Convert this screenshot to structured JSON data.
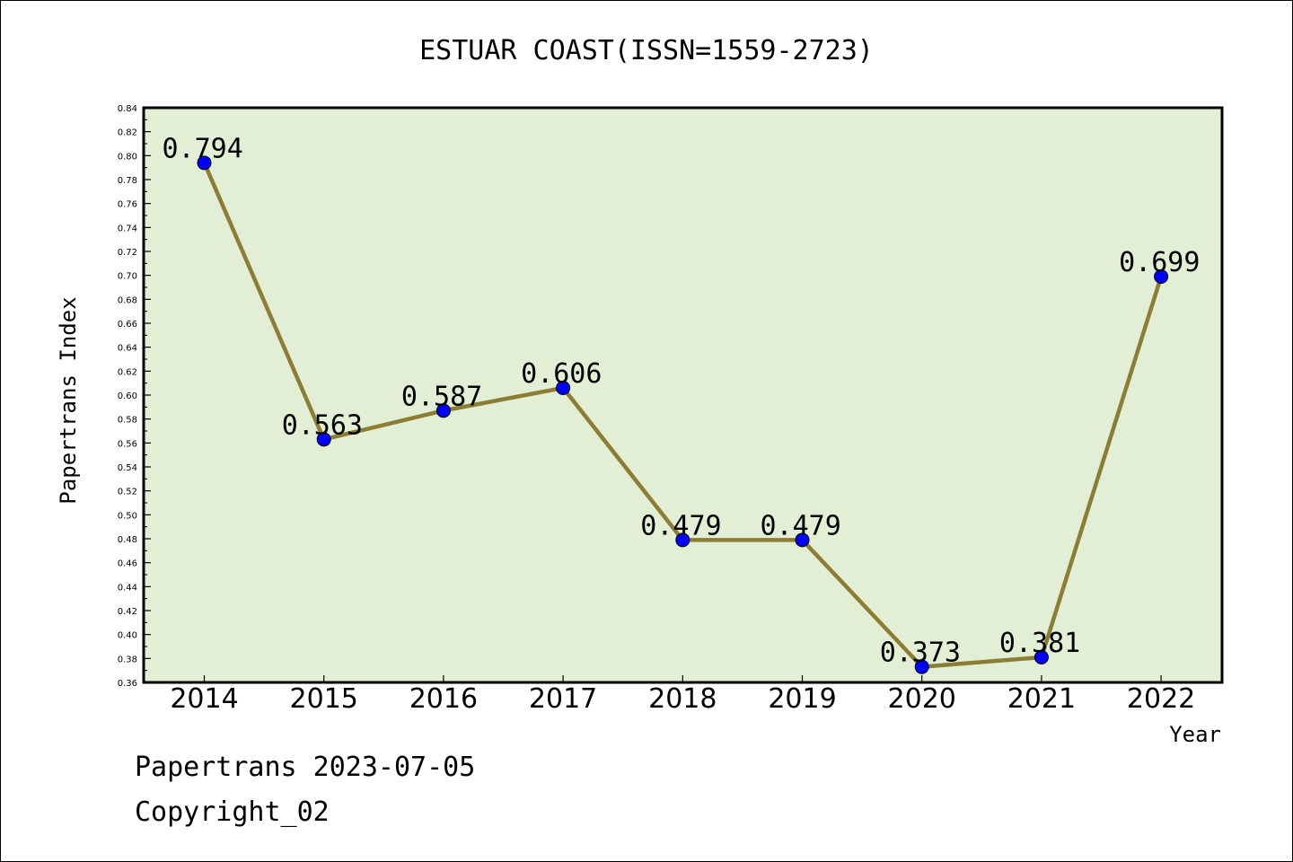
{
  "chart_data": {
    "type": "line",
    "title": "ESTUAR COAST(ISSN=1559-2723)",
    "xlabel": "Year",
    "ylabel": "Papertrans Index",
    "categories": [
      "2014",
      "2015",
      "2016",
      "2017",
      "2018",
      "2019",
      "2020",
      "2021",
      "2022"
    ],
    "series": [
      {
        "values": [
          0.794,
          0.563,
          0.587,
          0.606,
          0.479,
          0.479,
          0.373,
          0.381,
          0.699
        ],
        "labels": [
          "0.794",
          "0.563",
          "0.587",
          "0.606",
          "0.479",
          "0.479",
          "0.373",
          "0.381",
          "0.699"
        ]
      }
    ],
    "ylim": [
      0.36,
      0.84
    ],
    "y_ticks": [
      "0.36",
      "0.38",
      "0.40",
      "0.42",
      "0.44",
      "0.46",
      "0.48",
      "0.50",
      "0.52",
      "0.54",
      "0.56",
      "0.58",
      "0.60",
      "0.62",
      "0.64",
      "0.66",
      "0.68",
      "0.70",
      "0.72",
      "0.74",
      "0.76",
      "0.78",
      "0.80",
      "0.82",
      "0.84"
    ],
    "grid": false,
    "colors": {
      "plot_background": "#e2efd5",
      "line": "#8b7d33",
      "marker": "#0000ff",
      "axis": "#000000"
    }
  },
  "footer": {
    "line1": "Papertrans 2023-07-05",
    "line2": "Copyright_02"
  }
}
